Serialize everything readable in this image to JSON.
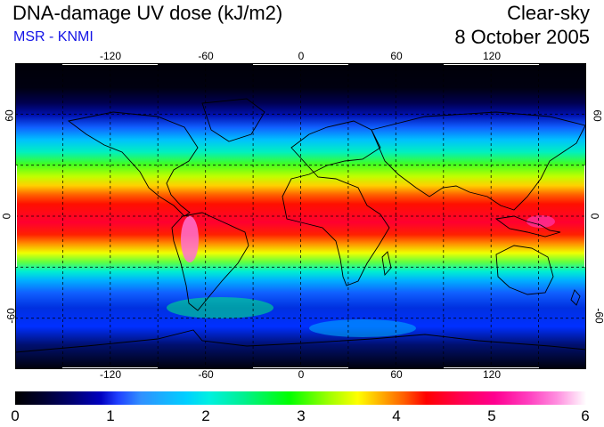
{
  "header": {
    "title": "DNA-damage UV dose (kJ/m2)",
    "subtitle": "MSR - KNMI",
    "sky_condition": "Clear-sky",
    "date": "8 October 2005"
  },
  "axes": {
    "longitude_ticks": [
      "-120",
      "-60",
      "0",
      "60",
      "120"
    ],
    "latitude_ticks_left": [
      "60",
      "0",
      "-60"
    ],
    "latitude_ticks_right": [
      "60",
      "0",
      "-60"
    ],
    "lon_range": [
      -180,
      180
    ],
    "lat_range": [
      -90,
      90
    ],
    "grid_spacing_deg": 30
  },
  "colorbar": {
    "min": 0,
    "max": 6,
    "tick_labels": [
      "0",
      "1",
      "2",
      "3",
      "4",
      "5",
      "6"
    ]
  },
  "colors": {
    "subtitle": "#1414e6",
    "grid": "#000000"
  }
}
